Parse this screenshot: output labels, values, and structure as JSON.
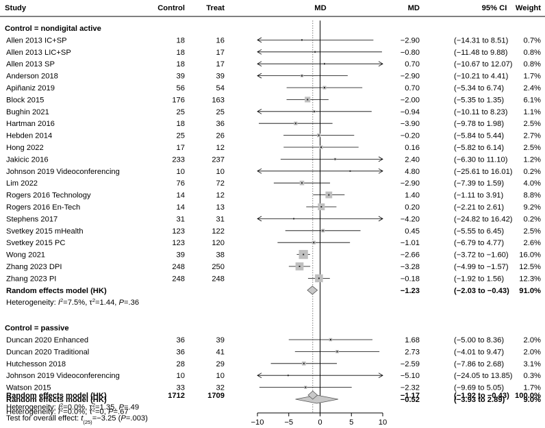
{
  "chart_data": {
    "type": "forest",
    "title": "MD",
    "headers": {
      "study": "Study",
      "control": "Control",
      "treat": "Treat",
      "md_plot": "MD",
      "md": "MD",
      "ci": "95% CI",
      "weight": "Weight"
    },
    "axis": {
      "xlim": [
        -10,
        10
      ],
      "ticks": [
        -10,
        -5,
        0,
        5,
        10
      ],
      "tick_labels": [
        "−10",
        "−5",
        "0",
        "5",
        "10"
      ],
      "reference_line": 0,
      "overall_dotted_line": -1.17
    },
    "groups": [
      {
        "label": "Control = nondigital active",
        "studies": [
          {
            "name": "Allen 2013 IC+SP",
            "control": "18",
            "treat": "16",
            "md": -2.9,
            "lo": -14.31,
            "hi": 8.51,
            "md_text": "−2.90",
            "ci_text": "(−14.31 to 8.51)",
            "weight_text": "0.7%",
            "weight": 0.7
          },
          {
            "name": "Allen 2013 LIC+SP",
            "control": "18",
            "treat": "17",
            "md": -0.8,
            "lo": -11.48,
            "hi": 9.88,
            "md_text": "−0.80",
            "ci_text": "(−11.48 to 9.88)",
            "weight_text": "0.8%",
            "weight": 0.8
          },
          {
            "name": "Allen 2013 SP",
            "control": "18",
            "treat": "17",
            "md": 0.7,
            "lo": -10.67,
            "hi": 12.07,
            "md_text": "0.70",
            "ci_text": "(−10.67 to 12.07)",
            "weight_text": "0.8%",
            "weight": 0.8
          },
          {
            "name": "Anderson 2018",
            "control": "39",
            "treat": "39",
            "md": -2.9,
            "lo": -10.21,
            "hi": 4.41,
            "md_text": "−2.90",
            "ci_text": "(−10.21 to 4.41)",
            "weight_text": "1.7%",
            "weight": 1.7
          },
          {
            "name": "Apiñaniz 2019",
            "control": "56",
            "treat": "54",
            "md": 0.7,
            "lo": -5.34,
            "hi": 6.74,
            "md_text": "0.70",
            "ci_text": "(−5.34 to 6.74)",
            "weight_text": "2.4%",
            "weight": 2.4
          },
          {
            "name": "Block 2015",
            "control": "176",
            "treat": "163",
            "md": -2.0,
            "lo": -5.35,
            "hi": 1.35,
            "md_text": "−2.00",
            "ci_text": "(−5.35 to 1.35)",
            "weight_text": "6.1%",
            "weight": 6.1
          },
          {
            "name": "Bughin 2021",
            "control": "25",
            "treat": "25",
            "md": -0.94,
            "lo": -10.11,
            "hi": 8.23,
            "md_text": "−0.94",
            "ci_text": "(−10.11 to 8.23)",
            "weight_text": "1.1%",
            "weight": 1.1
          },
          {
            "name": "Hartman 2016",
            "control": "18",
            "treat": "36",
            "md": -3.9,
            "lo": -9.78,
            "hi": 1.98,
            "md_text": "−3.90",
            "ci_text": "(−9.78 to 1.98)",
            "weight_text": "2.5%",
            "weight": 2.5
          },
          {
            "name": "Hebden 2014",
            "control": "25",
            "treat": "26",
            "md": -0.2,
            "lo": -5.84,
            "hi": 5.44,
            "md_text": "−0.20",
            "ci_text": "(−5.84 to 5.44)",
            "weight_text": "2.7%",
            "weight": 2.7
          },
          {
            "name": "Hong 2022",
            "control": "17",
            "treat": "12",
            "md": 0.16,
            "lo": -5.82,
            "hi": 6.14,
            "md_text": "0.16",
            "ci_text": "(−5.82 to 6.14)",
            "weight_text": "2.5%",
            "weight": 2.5
          },
          {
            "name": "Jakicic 2016",
            "control": "233",
            "treat": "237",
            "md": 2.4,
            "lo": -6.3,
            "hi": 11.1,
            "md_text": "2.40",
            "ci_text": "(−6.30 to 11.10)",
            "weight_text": "1.2%",
            "weight": 1.2
          },
          {
            "name": "Johnson 2019 Videoconferencing",
            "control": "10",
            "treat": "10",
            "md": 4.8,
            "lo": -25.61,
            "hi": 16.01,
            "md_text": "4.80",
            "ci_text": "(−25.61 to 16.01)",
            "weight_text": "0.2%",
            "weight": 0.2
          },
          {
            "name": "Lim 2022",
            "control": "76",
            "treat": "72",
            "md": -2.9,
            "lo": -7.39,
            "hi": 1.59,
            "md_text": "−2.90",
            "ci_text": "(−7.39 to 1.59)",
            "weight_text": "4.0%",
            "weight": 4.0
          },
          {
            "name": "Rogers 2016 Technology",
            "control": "14",
            "treat": "12",
            "md": 1.4,
            "lo": -1.11,
            "hi": 3.91,
            "md_text": "1.40",
            "ci_text": "(−1.11 to 3.91)",
            "weight_text": "8.8%",
            "weight": 8.8
          },
          {
            "name": "Rogers 2016 En-Tech",
            "control": "14",
            "treat": "13",
            "md": 0.2,
            "lo": -2.21,
            "hi": 2.61,
            "md_text": "0.20",
            "ci_text": "(−2.21 to 2.61)",
            "weight_text": "9.2%",
            "weight": 9.2
          },
          {
            "name": "Stephens 2017",
            "control": "31",
            "treat": "31",
            "md": -4.2,
            "lo": -24.82,
            "hi": 16.42,
            "md_text": "−4.20",
            "ci_text": "(−24.82 to 16.42)",
            "weight_text": "0.2%",
            "weight": 0.2
          },
          {
            "name": "Svetkey 2015 mHealth",
            "control": "123",
            "treat": "122",
            "md": 0.45,
            "lo": -5.55,
            "hi": 6.45,
            "md_text": "0.45",
            "ci_text": "(−5.55 to 6.45)",
            "weight_text": "2.5%",
            "weight": 2.5
          },
          {
            "name": "Svetkey 2015 PC",
            "control": "123",
            "treat": "120",
            "md": -1.01,
            "lo": -6.79,
            "hi": 4.77,
            "md_text": "−1.01",
            "ci_text": "(−6.79 to 4.77)",
            "weight_text": "2.6%",
            "weight": 2.6
          },
          {
            "name": "Wong 2021",
            "control": "39",
            "treat": "38",
            "md": -2.66,
            "lo": -3.72,
            "hi": -1.6,
            "md_text": "−2.66",
            "ci_text": "(−3.72 to −1.60)",
            "weight_text": "16.0%",
            "weight": 16.0
          },
          {
            "name": "Zhang 2023 DPI",
            "control": "248",
            "treat": "250",
            "md": -3.28,
            "lo": -4.99,
            "hi": -1.57,
            "md_text": "−3.28",
            "ci_text": "(−4.99 to −1.57)",
            "weight_text": "12.5%",
            "weight": 12.5
          },
          {
            "name": "Zhang 2023 PI",
            "control": "248",
            "treat": "248",
            "md": -0.18,
            "lo": -1.92,
            "hi": 1.56,
            "md_text": "−0.18",
            "ci_text": "(−1.92 to 1.56)",
            "weight_text": "12.3%",
            "weight": 12.3
          }
        ],
        "summary": {
          "label": "Random effects model (HK)",
          "md": -1.23,
          "lo": -2.03,
          "hi": -0.43,
          "md_text": "−1.23",
          "ci_text": "(−2.03 to −0.43)",
          "weight_text": "91.0%"
        },
        "heterogeneity": {
          "prefix": "Heterogeneity: ",
          "i2_sym": "I",
          "i2_sup": "2",
          "i2_val": "=7.5%, τ",
          "tau_sup": "2",
          "tau_val": "=1.44, ",
          "p_sym": "P",
          "p_val": "=.36"
        }
      },
      {
        "label": "Control = passive",
        "studies": [
          {
            "name": "Duncan 2020 Enhanced",
            "control": "36",
            "treat": "39",
            "md": 1.68,
            "lo": -5.0,
            "hi": 8.36,
            "md_text": "1.68",
            "ci_text": "(−5.00 to 8.36)",
            "weight_text": "2.0%",
            "weight": 2.0
          },
          {
            "name": "Duncan 2020 Traditional",
            "control": "36",
            "treat": "41",
            "md": 2.73,
            "lo": -4.01,
            "hi": 9.47,
            "md_text": "2.73",
            "ci_text": "(−4.01 to 9.47)",
            "weight_text": "2.0%",
            "weight": 2.0
          },
          {
            "name": "Hutchesson 2018",
            "control": "28",
            "treat": "29",
            "md": -2.59,
            "lo": -7.86,
            "hi": 2.68,
            "md_text": "−2.59",
            "ci_text": "(−7.86 to 2.68)",
            "weight_text": "3.1%",
            "weight": 3.1
          },
          {
            "name": "Johnson 2019 Videoconferencing",
            "control": "10",
            "treat": "10",
            "md": -5.1,
            "lo": -24.05,
            "hi": 13.85,
            "md_text": "−5.10",
            "ci_text": "(−24.05 to 13.85)",
            "weight_text": "0.3%",
            "weight": 0.3
          },
          {
            "name": "Watson 2015",
            "control": "33",
            "treat": "32",
            "md": -2.32,
            "lo": -9.69,
            "hi": 5.05,
            "md_text": "−2.32",
            "ci_text": "(−9.69 to 5.05)",
            "weight_text": "1.7%",
            "weight": 1.7
          }
        ],
        "summary": {
          "label": "Random effects model (HK)",
          "md": -0.52,
          "lo": -3.93,
          "hi": 2.89,
          "md_text": "−0.52",
          "ci_text": "(−3.93 to 2.89)",
          "weight_text": "9.0%"
        },
        "heterogeneity": {
          "prefix": "Heterogeneity: ",
          "i2_sym": "I",
          "i2_sup": "2",
          "i2_val": "=0.0%, τ",
          "tau_sup": "2",
          "tau_val": "=0, ",
          "p_sym": "P",
          "p_val": "=.67"
        }
      }
    ],
    "overall": {
      "label": "Random effects model (HK)",
      "control": "1712",
      "treat": "1709",
      "md": -1.17,
      "lo": -1.92,
      "hi": -0.43,
      "md_text": "−1.17",
      "ci_text": "(−1.92 to −0.43)",
      "weight_text": "100.0%",
      "heterogeneity": {
        "prefix": "Heterogeneity: ",
        "i2_sym": "I",
        "i2_sup": "2",
        "i2_val": "=0.0%, τ",
        "tau_sup": "2",
        "tau_val": "=1.35, ",
        "p_sym": "P",
        "p_val": "=.49"
      },
      "test": {
        "prefix": "Test for overall effect: ",
        "t_sym": "t",
        "t_sub": "(25)",
        "t_val": "=−3.25 (",
        "p_sym": "P",
        "p_val": "=.003)"
      }
    }
  }
}
